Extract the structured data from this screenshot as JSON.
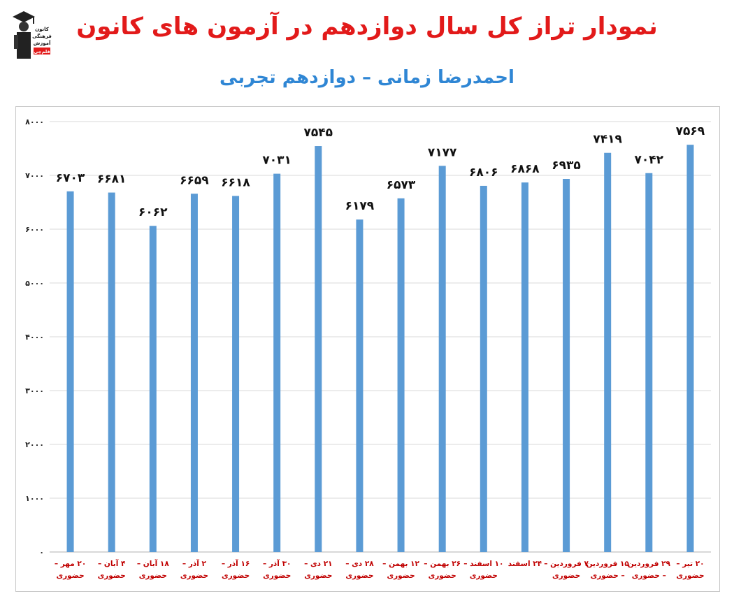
{
  "header": {
    "title": "نمودار تراز کل سال دوازدهم در آزمون های کانون",
    "subtitle": "احمدرضا زمانی – دوازدهم تجربی",
    "logo_text": [
      "کانون",
      "فرهنگی",
      "آموزش",
      "قلم‌چی"
    ]
  },
  "colors": {
    "bar": "#5b9bd5",
    "title": "#e21a1a",
    "subtitle": "#2f86d4",
    "category_label": "#c00000",
    "grid": "#d9d9d9"
  },
  "chart_data": {
    "type": "bar",
    "title": "",
    "xlabel": "",
    "ylabel": "",
    "ylim": [
      0,
      8000
    ],
    "yticks": [
      0,
      1000,
      2000,
      3000,
      4000,
      5000,
      6000,
      7000,
      8000
    ],
    "ytick_labels": [
      "۰",
      "۱۰۰۰",
      "۲۰۰۰",
      "۳۰۰۰",
      "۴۰۰۰",
      "۵۰۰۰",
      "۶۰۰۰",
      "۷۰۰۰",
      "۸۰۰۰"
    ],
    "grid": true,
    "legend": "none",
    "categories": [
      [
        "۲۰ مهر –",
        "حضوری"
      ],
      [
        "۴ آبان –",
        "حضوری"
      ],
      [
        "۱۸ آبان –",
        "حضوری"
      ],
      [
        "۲ آذر –",
        "حضوری"
      ],
      [
        "۱۶ آذر –",
        "حضوری"
      ],
      [
        "۳۰ آذر –",
        "حضوری"
      ],
      [
        "۲۱ دی –",
        "حضوری"
      ],
      [
        "۲۸ دی –",
        "حضوری"
      ],
      [
        "۱۲ بهمن –",
        "حضوری"
      ],
      [
        "۲۶ بهمن –",
        "حضوری"
      ],
      [
        "۱۰ اسفند –",
        "حضوری"
      ],
      [
        "۲۴ اسفند"
      ],
      [
        "۷ فروردین –",
        "حضوری"
      ],
      [
        "۱۵ فروردین",
        "– حضوری"
      ],
      [
        "۲۹ فروردین",
        "– حضوری"
      ],
      [
        "۲۰ تیر –",
        "حضوری"
      ]
    ],
    "values": [
      6703,
      6681,
      6062,
      6659,
      6618,
      7031,
      7545,
      6179,
      6573,
      7177,
      6806,
      6868,
      6935,
      7419,
      7042,
      7569
    ],
    "value_labels": [
      "۶۷۰۳",
      "۶۶۸۱",
      "۶۰۶۲",
      "۶۶۵۹",
      "۶۶۱۸",
      "۷۰۳۱",
      "۷۵۴۵",
      "۶۱۷۹",
      "۶۵۷۳",
      "۷۱۷۷",
      "۶۸۰۶",
      "۶۸۶۸",
      "۶۹۳۵",
      "۷۴۱۹",
      "۷۰۴۲",
      "۷۵۶۹"
    ]
  }
}
